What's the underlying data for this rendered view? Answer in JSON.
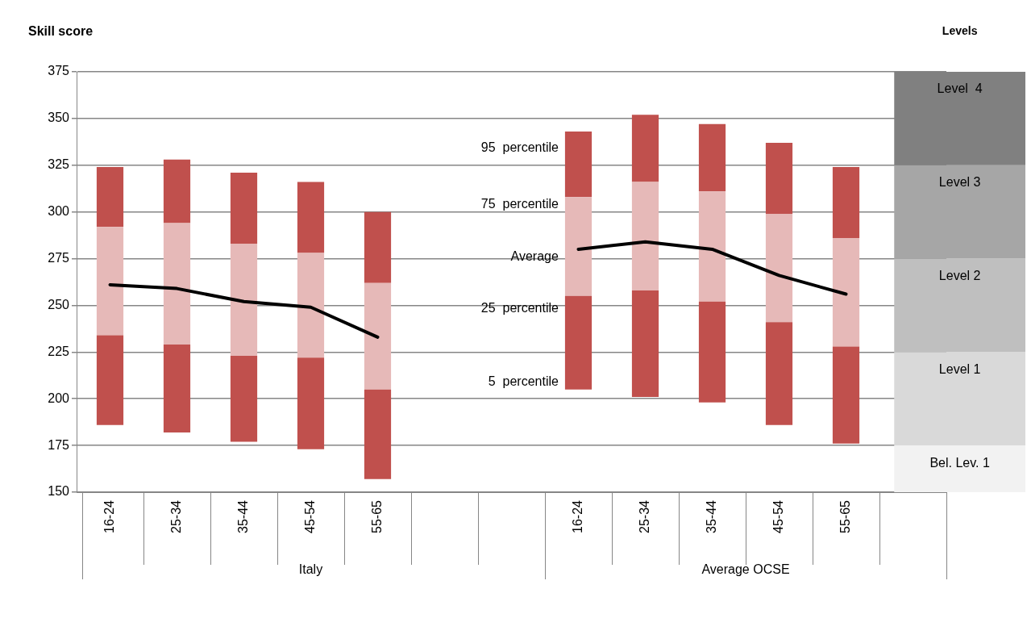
{
  "chart_data": {
    "type": "bar",
    "ylabel": "Skill score",
    "categories": [
      "16-24",
      "25-34",
      "35-44",
      "45-54",
      "55-65",
      null,
      null,
      "16-24",
      "25-34",
      "35-44",
      "45-54",
      "55-65",
      null
    ],
    "series": [
      {
        "color": "#c0504d",
        "base": [
          186,
          182,
          177,
          173,
          157,
          null,
          null,
          205,
          201,
          198,
          186,
          176,
          null
        ],
        "values": [
          48,
          47,
          46,
          49,
          48,
          null,
          null,
          50,
          57,
          54,
          55,
          52,
          null
        ]
      },
      {
        "color": "#e6b9b8",
        "base": [
          234,
          229,
          223,
          222,
          205,
          null,
          null,
          255,
          258,
          252,
          241,
          228,
          null
        ],
        "values": [
          58,
          65,
          60,
          56,
          57,
          null,
          null,
          53,
          58,
          59,
          58,
          58,
          null
        ]
      },
      {
        "color": "#c0504d",
        "base": [
          292,
          294,
          283,
          278,
          262,
          null,
          null,
          308,
          316,
          311,
          299,
          286,
          null
        ],
        "values": [
          32,
          34,
          38,
          38,
          38,
          null,
          null,
          35,
          36,
          36,
          38,
          38,
          null
        ]
      },
      {
        "type": "line",
        "color": "#000000",
        "values": [
          261,
          259,
          252,
          249,
          233,
          null,
          null,
          280,
          284,
          280,
          266,
          256,
          null
        ]
      }
    ],
    "ylim": [
      150,
      375
    ],
    "yticks": [
      150,
      175,
      200,
      225,
      250,
      275,
      300,
      325,
      350,
      375
    ],
    "grid": "y",
    "legend": false,
    "marker": "none",
    "line_style": "solid",
    "bands": [
      {
        "axis": "y",
        "from": 150,
        "to": 175,
        "label": "Bel. Lev. 1",
        "color": "#f2f2f2"
      },
      {
        "axis": "y",
        "from": 175,
        "to": 225,
        "label": "Level 1",
        "color": "#d9d9d9"
      },
      {
        "axis": "y",
        "from": 225,
        "to": 275,
        "label": "Level 2",
        "color": "#bfbfbf"
      },
      {
        "axis": "y",
        "from": 275,
        "to": 325,
        "label": "Level 3",
        "color": "#a6a6a6"
      },
      {
        "axis": "y",
        "from": 325,
        "to": 375,
        "label": "Level  4",
        "color": "#808080"
      }
    ],
    "annotations": [
      "Italy",
      "Average OCSE",
      "Levels",
      "95  percentile",
      "75  percentile",
      "Average",
      "25  percentile",
      "5  percentile"
    ]
  }
}
